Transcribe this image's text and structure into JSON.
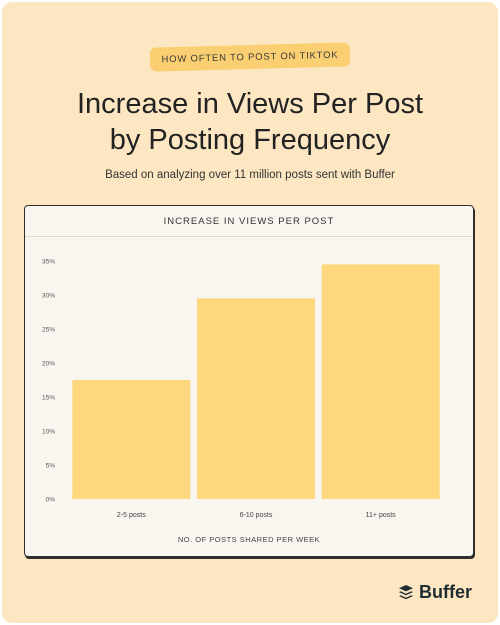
{
  "header": {
    "tag": "HOW OFTEN TO POST ON TIKTOK",
    "title": "Increase in Views Per Post\nby Posting Frequency",
    "subtitle": "Based on analyzing over 11 million posts sent with Buffer"
  },
  "brand": {
    "name": "Buffer"
  },
  "colors": {
    "background": "#fde7c2",
    "bar": "#ffd77e",
    "tag": "#f9cf72"
  },
  "chart_data": {
    "type": "bar",
    "title": "INCREASE IN VIEWS PER POST",
    "xlabel": "NO. OF POSTS SHARED PER WEEK",
    "ylabel": "",
    "categories": [
      "2-5 posts",
      "6-10 posts",
      "11+ posts"
    ],
    "values": [
      17.5,
      29.5,
      34.5
    ],
    "ylim": [
      0,
      35
    ],
    "yticks": [
      0,
      5,
      10,
      15,
      20,
      25,
      30,
      35
    ],
    "ytick_labels": [
      "0%",
      "5%",
      "10%",
      "15%",
      "20%",
      "25%",
      "30%",
      "35%"
    ],
    "grid": false,
    "legend": "none"
  }
}
